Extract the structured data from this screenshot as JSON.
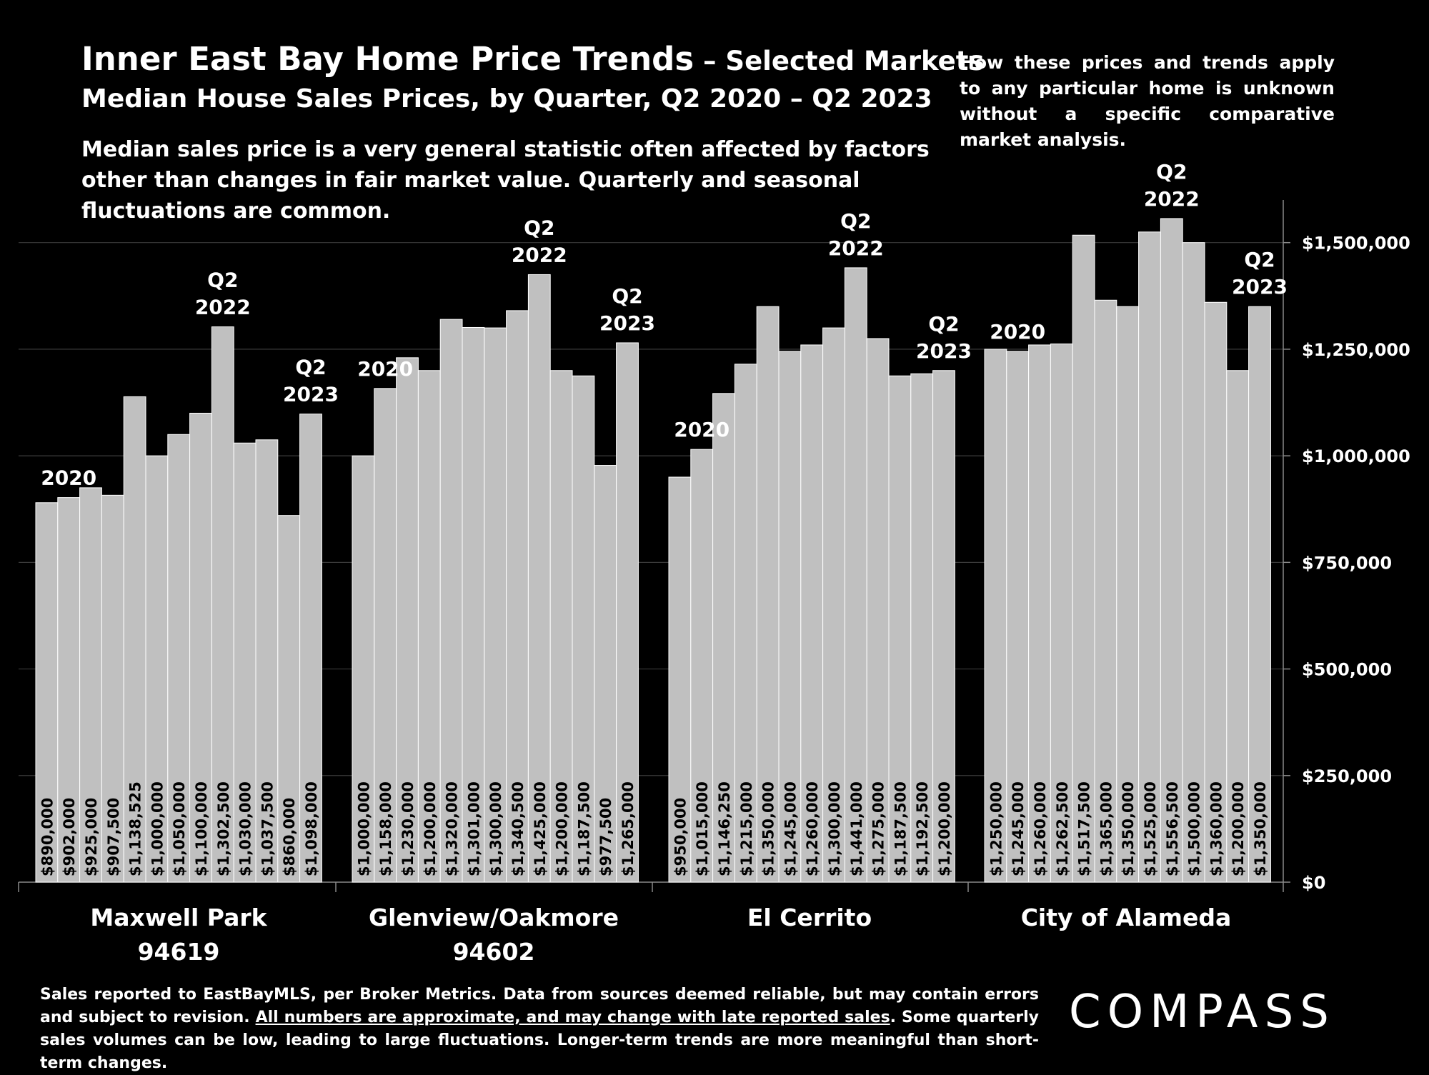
{
  "header": {
    "title_main": "Inner East Bay Home Price Trends",
    "title_suffix": " – Selected Markets",
    "subtitle": "Median House Sales Prices, by Quarter, Q2 2020 – Q2 2023",
    "description": "Median sales price is a very general statistic often affected by factors other than changes in fair market value. Quarterly and seasonal fluctuations are common.",
    "side_note": "How these prices and trends apply to any particular home is unknown without a specific comparative market analysis."
  },
  "footer": {
    "text_1": "Sales reported to EastBayMLS, per Broker Metrics. Data from sources deemed reliable, but may contain errors and subject to revision. ",
    "text_underlined": "All numbers are approximate, and may change with late reported sales",
    "text_2": ".  Some quarterly sales volumes can be low, leading to large fluctuations. Longer-term trends are more meaningful than short-term changes.",
    "logo": "COMPASS"
  },
  "colors": {
    "background": "#000000",
    "bar": "#c0c0c0",
    "text": "#ffffff",
    "grid": "#3a3a3a"
  },
  "chart_data": {
    "type": "bar",
    "ylim": [
      0,
      1600000
    ],
    "y_ticks": [
      0,
      250000,
      500000,
      750000,
      1000000,
      1250000,
      1500000
    ],
    "y_tick_labels": [
      "$0",
      "$250,000",
      "$500,000",
      "$750,000",
      "$1,000,000",
      "$1,250,000",
      "$1,500,000"
    ],
    "y_axis_position": "right",
    "grid": true,
    "groups": [
      {
        "name_line1": "Maxwell Park",
        "name_line2": "94619",
        "values": [
          890000,
          902000,
          925000,
          907500,
          1138525,
          1000000,
          1050000,
          1100000,
          1302500,
          1030000,
          1037500,
          860000,
          1098000
        ],
        "value_labels": [
          "$890,000",
          "$902,000",
          "$925,000",
          "$907,500",
          "$1,138,525",
          "$1,000,000",
          "$1,050,000",
          "$1,100,000",
          "$1,302,500",
          "$1,030,000",
          "$1,037,500",
          "$860,000",
          "$1,098,000"
        ],
        "annotations": [
          {
            "index": 1,
            "lines": [
              "2020"
            ]
          },
          {
            "index": 8,
            "lines": [
              "Q2",
              "2022"
            ]
          },
          {
            "index": 12,
            "lines": [
              "Q2",
              "2023"
            ]
          }
        ]
      },
      {
        "name_line1": "Glenview/Oakmore",
        "name_line2": "94602",
        "values": [
          1000000,
          1158000,
          1230000,
          1200000,
          1320000,
          1301000,
          1300000,
          1340500,
          1425000,
          1200000,
          1187500,
          977500,
          1265000
        ],
        "value_labels": [
          "$1,000,000",
          "$1,158,000",
          "$1,230,000",
          "$1,200,000",
          "$1,320,000",
          "$1,301,000",
          "$1,300,000",
          "$1,340,500",
          "$1,425,000",
          "$1,200,000",
          "$1,187,500",
          "$977,500",
          "$1,265,000"
        ],
        "annotations": [
          {
            "index": 1,
            "lines": [
              "2020"
            ]
          },
          {
            "index": 8,
            "lines": [
              "Q2",
              "2022"
            ]
          },
          {
            "index": 12,
            "lines": [
              "Q2",
              "2023"
            ]
          }
        ]
      },
      {
        "name_line1": "El Cerrito",
        "name_line2": "",
        "values": [
          950000,
          1015000,
          1146250,
          1215000,
          1350000,
          1245000,
          1260000,
          1300000,
          1441000,
          1275000,
          1187500,
          1192500,
          1200000
        ],
        "value_labels": [
          "$950,000",
          "$1,015,000",
          "$1,146,250",
          "$1,215,000",
          "$1,350,000",
          "$1,245,000",
          "$1,260,000",
          "$1,300,000",
          "$1,441,000",
          "$1,275,000",
          "$1,187,500",
          "$1,192,500",
          "$1,200,000"
        ],
        "annotations": [
          {
            "index": 1,
            "lines": [
              "2020"
            ]
          },
          {
            "index": 8,
            "lines": [
              "Q2",
              "2022"
            ]
          },
          {
            "index": 12,
            "lines": [
              "Q2",
              "2023"
            ]
          }
        ]
      },
      {
        "name_line1": "City of Alameda",
        "name_line2": "",
        "values": [
          1250000,
          1245000,
          1260000,
          1262500,
          1517500,
          1365000,
          1350000,
          1525000,
          1556500,
          1500000,
          1360000,
          1200000,
          1350000
        ],
        "value_labels": [
          "$1,250,000",
          "$1,245,000",
          "$1,260,000",
          "$1,262,500",
          "$1,517,500",
          "$1,365,000",
          "$1,350,000",
          "$1,525,000",
          "$1,556,500",
          "$1,500,000",
          "$1,360,000",
          "$1,200,000",
          "$1,350,000"
        ],
        "annotations": [
          {
            "index": 1,
            "lines": [
              "2020"
            ]
          },
          {
            "index": 8,
            "lines": [
              "Q2",
              "2022"
            ]
          },
          {
            "index": 12,
            "lines": [
              "Q2",
              "2023"
            ]
          }
        ]
      }
    ]
  }
}
